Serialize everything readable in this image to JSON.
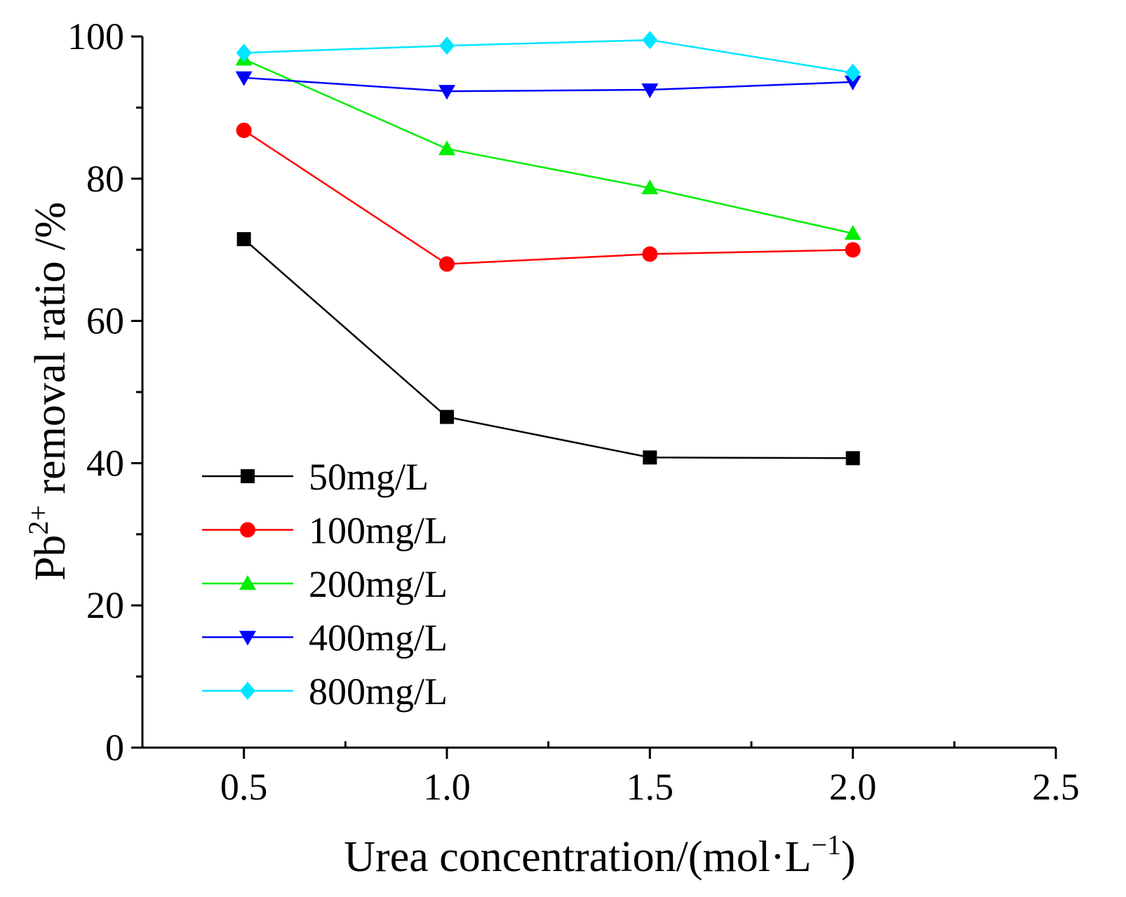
{
  "chart_data": {
    "type": "line",
    "title": "",
    "xlabel": "Urea concentration/(mol·L",
    "xlabel_sup": "−1",
    "xlabel_suffix": ")",
    "ylabel": "Pb",
    "ylabel_sup": "2+",
    "ylabel_suffix": " removal ratio /%",
    "xlim": [
      0.25,
      2.5
    ],
    "ylim": [
      0,
      100
    ],
    "x_ticks": [
      0.5,
      1.0,
      1.5,
      2.0,
      2.5
    ],
    "x_tick_labels": [
      "0.5",
      "1.0",
      "1.5",
      "2.0",
      "2.5"
    ],
    "y_ticks": [
      0,
      20,
      40,
      60,
      80,
      100
    ],
    "y_tick_labels": [
      "0",
      "20",
      "40",
      "60",
      "80",
      "100"
    ],
    "x": [
      0.5,
      1.0,
      1.5,
      2.0
    ],
    "legend_position": "bottom-left",
    "series": [
      {
        "name": "50mg/L",
        "values": [
          71.5,
          46.5,
          40.8,
          40.7
        ],
        "color": "#000000",
        "marker": "square"
      },
      {
        "name": "100mg/L",
        "values": [
          86.8,
          68.0,
          69.4,
          70.0
        ],
        "color": "#ff0000",
        "marker": "circle"
      },
      {
        "name": "200mg/L",
        "values": [
          96.8,
          84.2,
          78.7,
          72.3
        ],
        "color": "#00ee00",
        "marker": "triangle-up"
      },
      {
        "name": "400mg/L",
        "values": [
          94.2,
          92.3,
          92.5,
          93.6
        ],
        "color": "#0000ff",
        "marker": "triangle-down"
      },
      {
        "name": "800mg/L",
        "values": [
          97.7,
          98.7,
          99.5,
          94.9
        ],
        "color": "#00e5ff",
        "marker": "diamond"
      }
    ]
  }
}
